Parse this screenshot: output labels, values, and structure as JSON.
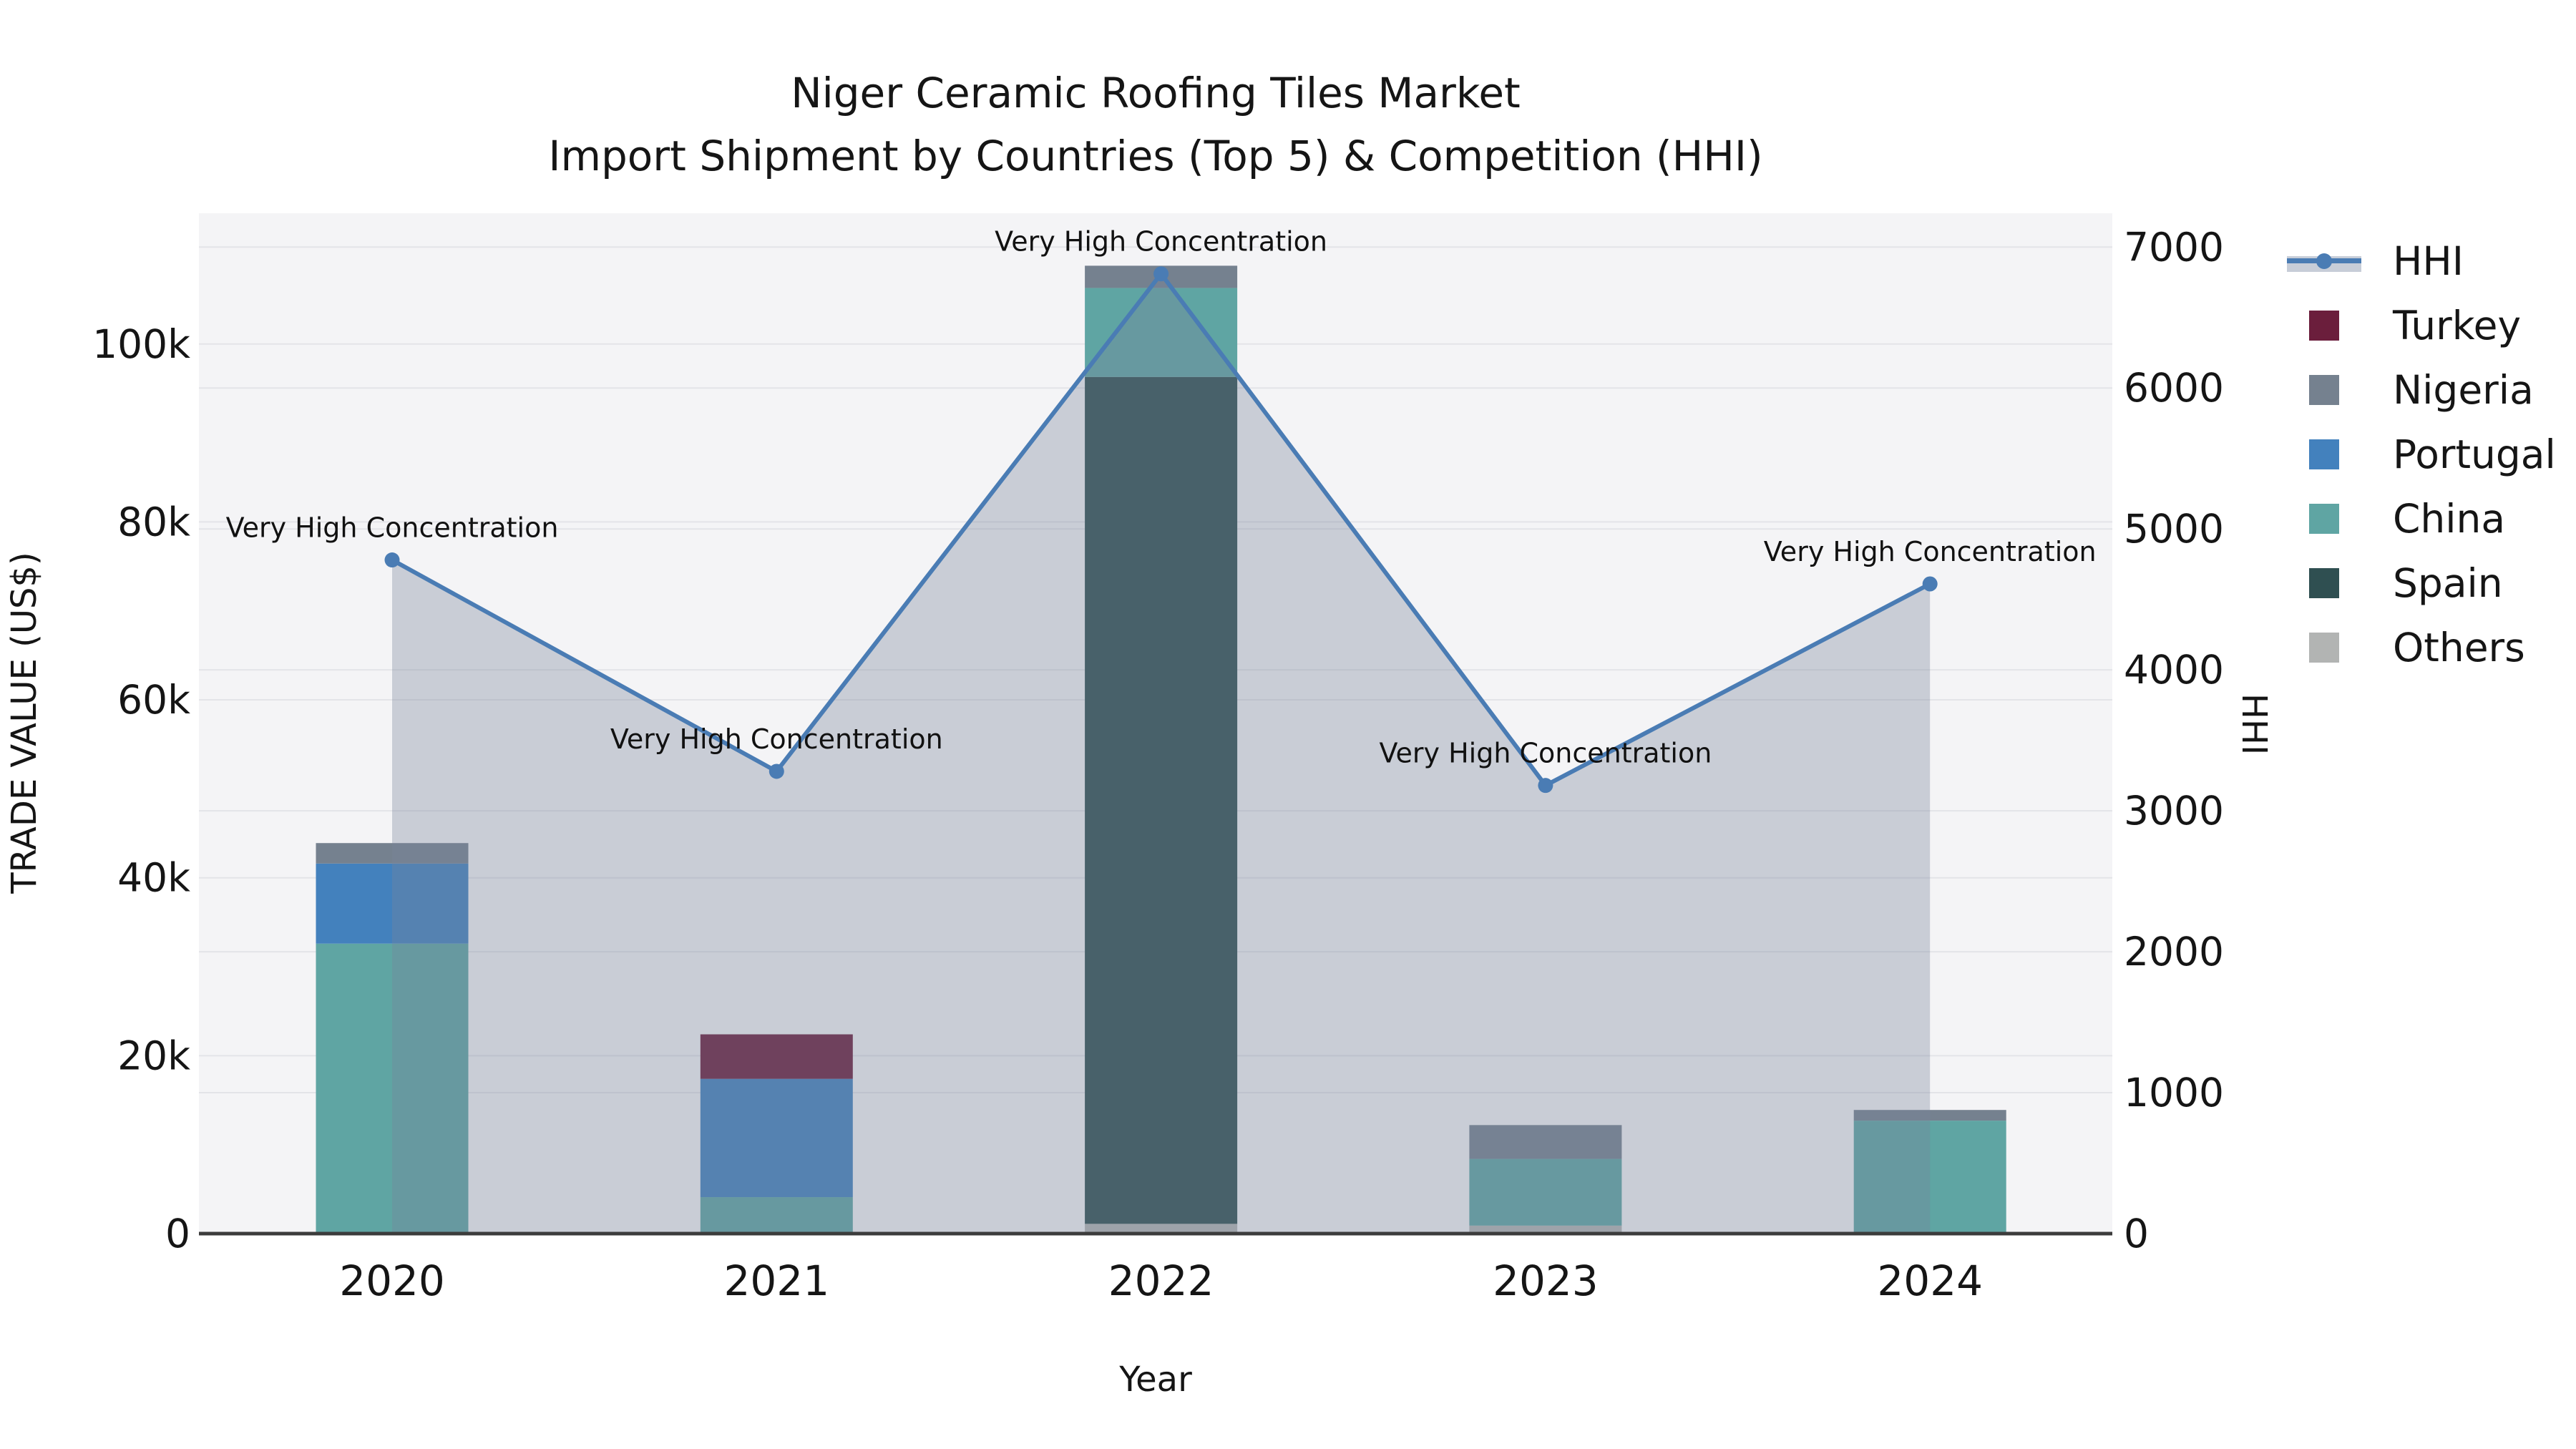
{
  "title": {
    "line1": "Niger Ceramic Roofing Tiles Market",
    "line2": "Import Shipment by Countries (Top 5) & Competition (HHI)"
  },
  "axis_titles": {
    "x": "Year",
    "y_left": "TRADE VALUE (US$)",
    "y_right": "HHI"
  },
  "chart_data": {
    "type": "combo: stacked-bar (left axis) + line-with-area (right axis)",
    "categories": [
      "2020",
      "2021",
      "2022",
      "2023",
      "2024"
    ],
    "stack_order": [
      "Others",
      "Spain",
      "China",
      "Portugal",
      "Turkey",
      "Nigeria"
    ],
    "series": [
      {
        "name": "Turkey",
        "color": "#6b1e3c",
        "values": [
          0,
          5000,
          0,
          0,
          0
        ]
      },
      {
        "name": "Nigeria",
        "color": "#75818f",
        "values": [
          2300,
          0,
          2500,
          3800,
          1200
        ]
      },
      {
        "name": "Portugal",
        "color": "#4381bd",
        "values": [
          9000,
          13300,
          0,
          0,
          0
        ]
      },
      {
        "name": "China",
        "color": "#5fa5a3",
        "values": [
          32600,
          4100,
          10000,
          7500,
          12700
        ]
      },
      {
        "name": "Spain",
        "color": "#2f4f51",
        "values": [
          0,
          0,
          95200,
          0,
          0
        ]
      },
      {
        "name": "Others",
        "color": "#b2b4b3",
        "values": [
          0,
          0,
          1100,
          900,
          0
        ]
      }
    ],
    "hhi_series": {
      "name": "HHI",
      "color": "#4a7cb4",
      "area_fill": "rgba(120,132,156,0.35)",
      "values": [
        4780,
        3280,
        6810,
        3180,
        4610
      ]
    },
    "annotations": [
      "Very High Concentration",
      "Very High Concentration",
      "Very High Concentration",
      "Very High Concentration",
      "Very High Concentration"
    ],
    "axes": {
      "left": {
        "label": "TRADE VALUE (US$)",
        "max": 114700,
        "ticks": [
          {
            "v": 0,
            "t": "0"
          },
          {
            "v": 20000,
            "t": "20k"
          },
          {
            "v": 40000,
            "t": "40k"
          },
          {
            "v": 60000,
            "t": "60k"
          },
          {
            "v": 80000,
            "t": "80k"
          },
          {
            "v": 100000,
            "t": "100k"
          }
        ]
      },
      "right": {
        "label": "HHI",
        "max": 7240,
        "ticks": [
          {
            "v": 0,
            "t": "0"
          },
          {
            "v": 1000,
            "t": "1000"
          },
          {
            "v": 2000,
            "t": "2000"
          },
          {
            "v": 3000,
            "t": "3000"
          },
          {
            "v": 4000,
            "t": "4000"
          },
          {
            "v": 5000,
            "t": "5000"
          },
          {
            "v": 6000,
            "t": "6000"
          },
          {
            "v": 7000,
            "t": "7000"
          }
        ]
      }
    },
    "grid": true,
    "legend_position": "right",
    "legend": [
      {
        "label": "HHI",
        "type": "line",
        "color": "#4a7cb4"
      },
      {
        "label": "Turkey",
        "type": "swatch",
        "color": "#6b1e3c"
      },
      {
        "label": "Nigeria",
        "type": "swatch",
        "color": "#75818f"
      },
      {
        "label": "Portugal",
        "type": "swatch",
        "color": "#4381bd"
      },
      {
        "label": "China",
        "type": "swatch",
        "color": "#5fa5a3"
      },
      {
        "label": "Spain",
        "type": "swatch",
        "color": "#2f4f51"
      },
      {
        "label": "Others",
        "type": "swatch",
        "color": "#b2b4b3"
      }
    ]
  },
  "colors": {
    "plot_bg": "#f4f4f6",
    "grid": "#e3e4e8",
    "axis_line": "#3c3c3c",
    "text": "#151515"
  }
}
